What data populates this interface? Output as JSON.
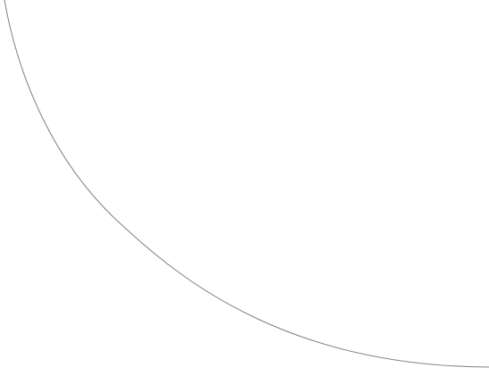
{
  "canvas": {
    "background": "#ffffff",
    "stroke_color": "#808080"
  },
  "shape": {
    "kind": "curved-arc-stroke"
  }
}
